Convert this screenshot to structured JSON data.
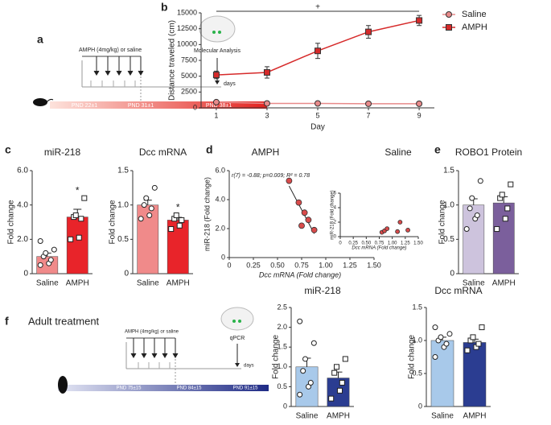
{
  "panel_labels": [
    "a",
    "b",
    "c",
    "d",
    "e",
    "f"
  ],
  "timelines": [
    {
      "treatment": "AMPH (4mg/kg) or saline",
      "endpoint": "Molecular Analysis",
      "unit": "days",
      "pnd": [
        "PND 22±1",
        "PND 31±1",
        "PND 38±1"
      ]
    },
    {
      "title": "Adult treatment",
      "treatment": "AMPH (4mg/kg) or saline",
      "endpoint": "qPCR",
      "unit": "days",
      "pnd": [
        "PND 75±15",
        "PND 84±15",
        "PND 91±15"
      ]
    }
  ],
  "chart_data": [
    {
      "type": "line",
      "ylabel": "Distance traveled (cm)",
      "xlabel": "Day",
      "annotation": "+",
      "x": [
        1,
        3,
        5,
        7,
        9
      ],
      "xlim": [
        0.4,
        9.6
      ],
      "xticks": [
        1,
        3,
        5,
        7,
        9
      ],
      "ylim": [
        0,
        15000
      ],
      "yticks": [
        0,
        2500,
        5000,
        7500,
        10000,
        12500,
        15000
      ],
      "series": [
        {
          "name": "Saline",
          "color": "#e88a8a",
          "marker": "circle",
          "values": [
            900,
            700,
            700,
            650,
            650
          ],
          "errors": [
            200,
            150,
            150,
            150,
            150
          ]
        },
        {
          "name": "AMPH",
          "color": "#d62a2a",
          "marker": "square",
          "values": [
            5200,
            5600,
            9000,
            12000,
            13800
          ],
          "errors": [
            600,
            900,
            1200,
            1000,
            800
          ]
        }
      ]
    },
    {
      "type": "bar",
      "title": "miR-218",
      "ylabel": "Fold change",
      "categories": [
        "Saline",
        "AMPH"
      ],
      "values": [
        1.0,
        3.3
      ],
      "errors": [
        0.2,
        0.45
      ],
      "colors": [
        "#f08a8a",
        "#e8242a"
      ],
      "marker_shapes": [
        "circle",
        "square"
      ],
      "points": [
        [
          0.5,
          0.6,
          0.8,
          1.0,
          1.2,
          1.4,
          1.9
        ],
        [
          2.0,
          2.1,
          3.2,
          3.3,
          3.4,
          4.4
        ]
      ],
      "annotation": {
        "text": "*",
        "category": "AMPH"
      },
      "ylim": [
        0,
        6
      ],
      "yticks": [
        0,
        {
          "value": 2,
          "label": "2.0"
        },
        {
          "value": 4,
          "label": "4.0"
        },
        {
          "value": 6,
          "label": "6.0"
        }
      ]
    },
    {
      "type": "bar",
      "title": "Dcc mRNA",
      "ylabel": "Fold change",
      "categories": [
        "Saline",
        "AMPH"
      ],
      "values": [
        1.0,
        0.78
      ],
      "errors": [
        0.07,
        0.04
      ],
      "colors": [
        "#f08a8a",
        "#e8242a"
      ],
      "marker_shapes": [
        "circle",
        "square"
      ],
      "points": [
        [
          0.8,
          0.85,
          0.95,
          1.0,
          1.1,
          1.25
        ],
        [
          0.65,
          0.7,
          0.78,
          0.8,
          0.85
        ]
      ],
      "annotation": {
        "text": "*",
        "category": "AMPH"
      },
      "ylim": [
        0,
        1.5
      ],
      "yticks": [
        0,
        0.5,
        {
          "value": 1,
          "label": "1.0"
        },
        1.5
      ]
    },
    {
      "type": "scatter",
      "title": "AMPH",
      "xlabel": "Dcc mRNA (Fold change)",
      "ylabel": "miR-218 (Fold change)",
      "annotation": "r(7) = -0.88; p=0.009; R² = 0.78",
      "color": "#d94b4b",
      "trendline": true,
      "x": [
        0.62,
        0.72,
        0.78,
        0.82,
        0.75,
        0.88
      ],
      "values": [
        5.3,
        3.8,
        3.1,
        2.6,
        2.2,
        1.9
      ],
      "xlim": [
        0,
        1.5
      ],
      "xticks": [
        0,
        0.25,
        {
          "value": 0.5,
          "label": "0.50"
        },
        0.75,
        {
          "value": 1,
          "label": "1.00"
        },
        1.25,
        {
          "value": 1.5,
          "label": "1.50"
        }
      ],
      "ylim": [
        0,
        6
      ],
      "yticks": [
        0,
        {
          "value": 2,
          "label": "2.0"
        },
        {
          "value": 4,
          "label": "4.0"
        },
        {
          "value": 6,
          "label": "6.0"
        }
      ]
    },
    {
      "type": "scatter",
      "title": "Saline",
      "xlabel": "Dcc mRNA (Fold change)",
      "ylabel": "miR-218 (Fold change)",
      "color": "#d94b4b",
      "trendline": false,
      "x": [
        0.8,
        0.85,
        0.9,
        1.1,
        1.15,
        1.3
      ],
      "values": [
        0.6,
        0.8,
        1.1,
        0.7,
        2.0,
        0.9
      ],
      "xlim": [
        0,
        1.5
      ],
      "xticks": [
        0,
        0.25,
        {
          "value": 0.5,
          "label": "0.50"
        },
        0.75,
        {
          "value": 1,
          "label": "1.00"
        },
        1.25,
        {
          "value": 1.5,
          "label": "1.50"
        }
      ],
      "ylim": [
        0,
        6
      ],
      "yticks": [
        0,
        2,
        4,
        6
      ]
    },
    {
      "type": "bar",
      "title": "ROBO1 Protein",
      "ylabel": "Fold change",
      "categories": [
        "Saline",
        "AMPH"
      ],
      "values": [
        1.0,
        1.03
      ],
      "errors": [
        0.09,
        0.09
      ],
      "colors": [
        "#cdc3dd",
        "#7b5f9c"
      ],
      "marker_shapes": [
        "circle",
        "square"
      ],
      "points": [
        [
          0.65,
          0.8,
          0.85,
          0.95,
          1.1,
          1.35
        ],
        [
          0.65,
          0.8,
          0.95,
          1.1,
          1.15,
          1.3
        ]
      ],
      "ylim": [
        0,
        1.5
      ],
      "yticks": [
        0,
        0.5,
        {
          "value": 1,
          "label": "1.0"
        },
        1.5
      ]
    },
    {
      "type": "bar",
      "title": "miR-218",
      "ylabel": "Fold change",
      "categories": [
        "Saline",
        "AMPH"
      ],
      "values": [
        1.0,
        0.72
      ],
      "errors": [
        0.22,
        0.15
      ],
      "colors": [
        "#a8c9ea",
        "#2b3d91"
      ],
      "marker_shapes": [
        "circle",
        "square"
      ],
      "points": [
        [
          0.3,
          0.5,
          0.6,
          0.9,
          1.2,
          1.6,
          2.15
        ],
        [
          0.2,
          0.4,
          0.6,
          0.85,
          1.0,
          1.2
        ]
      ],
      "ylim": [
        0,
        2.5
      ],
      "yticks": [
        0,
        0.5,
        {
          "value": 1,
          "label": "1.0"
        },
        1.5,
        {
          "value": 2,
          "label": "2.0"
        },
        2.5
      ]
    },
    {
      "type": "bar",
      "title": "Dcc mRNA",
      "ylabel": "Fold change",
      "categories": [
        "Saline",
        "AMPH"
      ],
      "values": [
        1.0,
        0.97
      ],
      "errors": [
        0.05,
        0.05
      ],
      "colors": [
        "#a8c9ea",
        "#2b3d91"
      ],
      "marker_shapes": [
        "circle",
        "square"
      ],
      "points": [
        [
          0.75,
          0.9,
          0.95,
          1.0,
          1.05,
          1.1,
          1.2
        ],
        [
          0.85,
          0.9,
          0.95,
          1.0,
          1.05,
          1.2
        ]
      ],
      "ylim": [
        0,
        1.5
      ],
      "yticks": [
        0,
        0.5,
        {
          "value": 1,
          "label": "1.0"
        },
        1.5
      ]
    }
  ]
}
